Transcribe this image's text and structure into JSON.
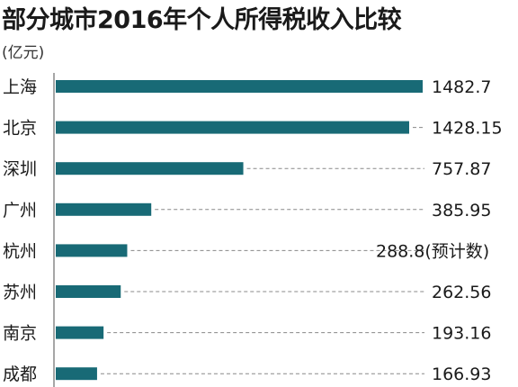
{
  "chart_data": {
    "type": "bar",
    "orientation": "horizontal",
    "title": "部分城市2016年个人所得税收入比较",
    "unit": "(亿元)",
    "categories": [
      "上海",
      "北京",
      "深圳",
      "广州",
      "杭州",
      "苏州",
      "南京",
      "成都"
    ],
    "values": [
      1482.7,
      1428.15,
      757.87,
      385.95,
      288.8,
      262.56,
      193.16,
      166.93
    ],
    "value_labels": [
      "1482.7",
      "1428.15",
      "757.87",
      "385.95",
      "288.8(预计数)",
      "262.56",
      "193.16",
      "166.93"
    ],
    "bar_color": "#186a76",
    "leader_line": "dashed",
    "grid": false,
    "legend": "none"
  }
}
